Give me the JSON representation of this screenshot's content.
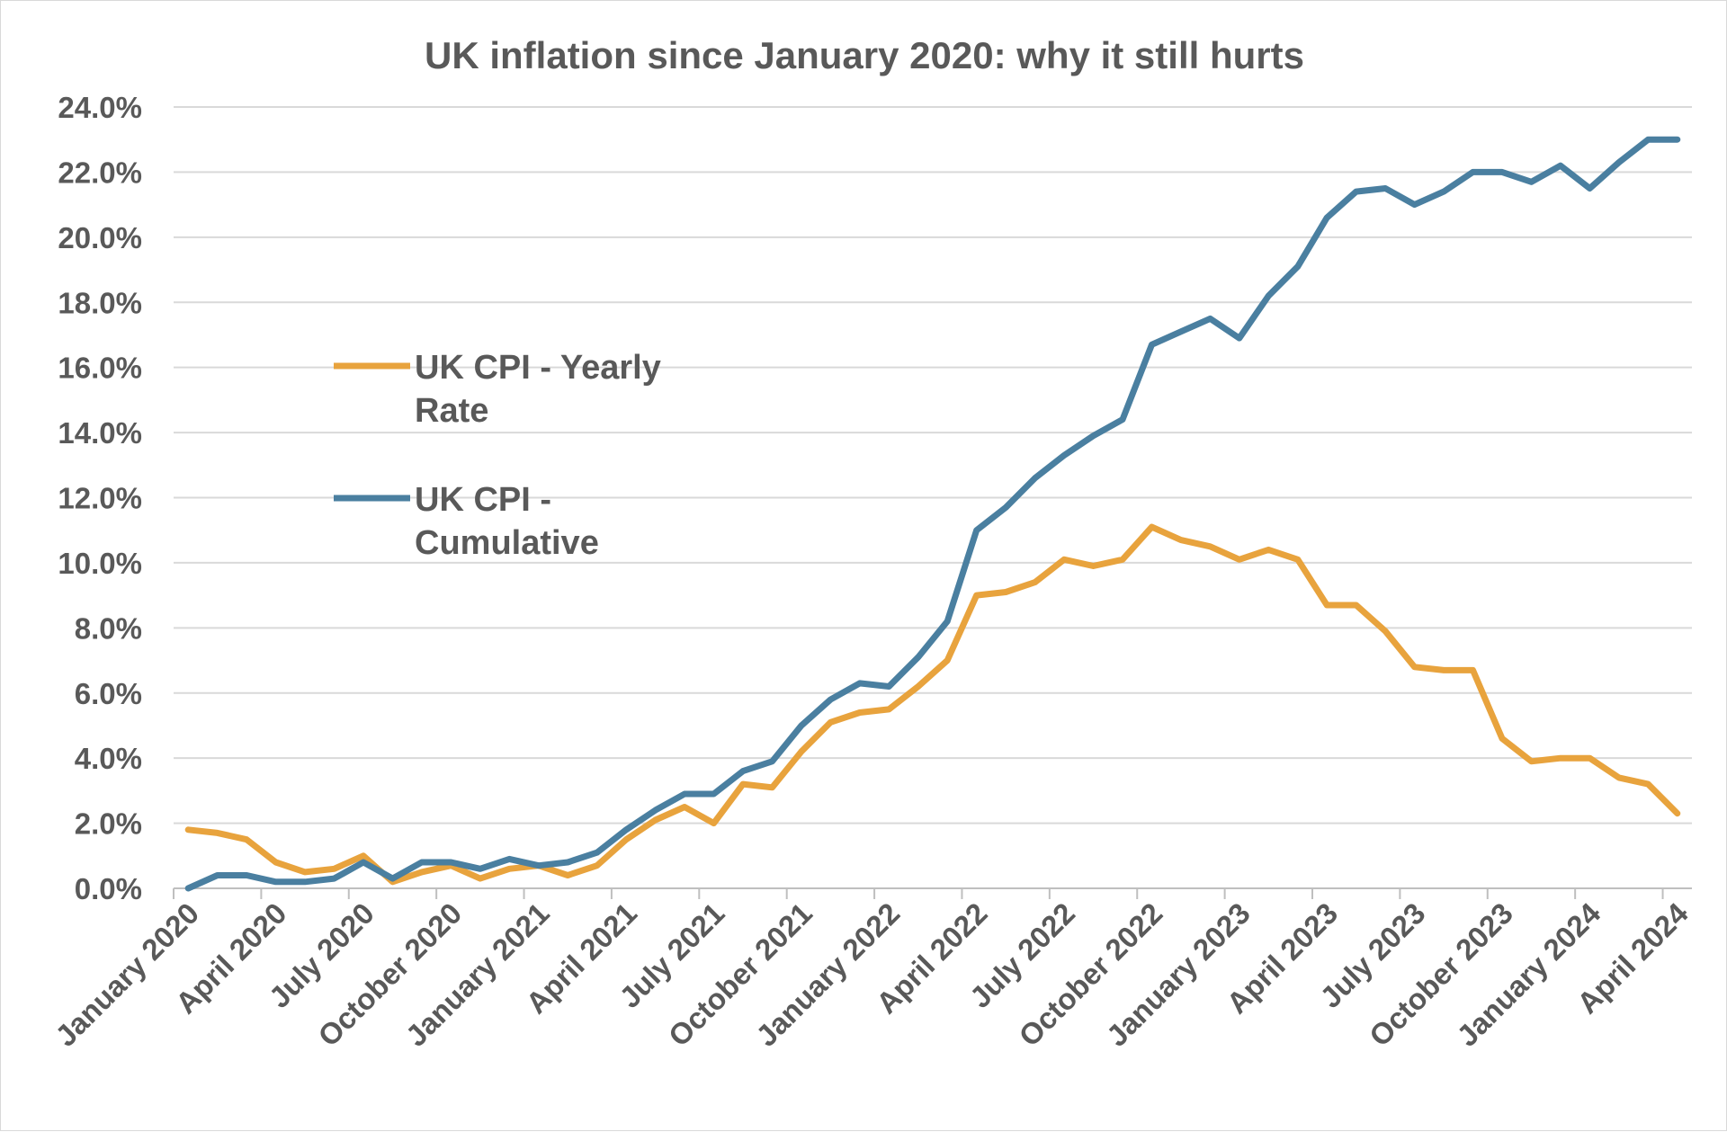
{
  "chart_data": {
    "type": "line",
    "title": "UK inflation since January 2020: why it still hurts",
    "xlabel": "",
    "ylabel": "",
    "ylim": [
      0,
      24
    ],
    "ytick_labels": [
      "0.0%",
      "2.0%",
      "4.0%",
      "6.0%",
      "8.0%",
      "10.0%",
      "12.0%",
      "14.0%",
      "16.0%",
      "18.0%",
      "20.0%",
      "22.0%",
      "24.0%"
    ],
    "y_unit": "%",
    "grid": true,
    "legend_placement": "left-center",
    "x": [
      "January 2020",
      "February 2020",
      "March 2020",
      "April 2020",
      "May 2020",
      "June 2020",
      "July 2020",
      "August 2020",
      "September 2020",
      "October 2020",
      "November 2020",
      "December 2020",
      "January 2021",
      "February 2021",
      "March 2021",
      "April 2021",
      "May 2021",
      "June 2021",
      "July 2021",
      "August 2021",
      "September 2021",
      "October 2021",
      "November 2021",
      "December 2021",
      "January 2022",
      "February 2022",
      "March 2022",
      "April 2022",
      "May 2022",
      "June 2022",
      "July 2022",
      "August 2022",
      "September 2022",
      "October 2022",
      "November 2022",
      "December 2022",
      "January 2023",
      "February 2023",
      "March 2023",
      "April 2023",
      "May 2023",
      "June 2023",
      "July 2023",
      "August 2023",
      "September 2023",
      "October 2023",
      "November 2023",
      "December 2023",
      "January 2024",
      "February 2024",
      "March 2024",
      "April 2024"
    ],
    "x_tick_labels": [
      "January 2020",
      "April 2020",
      "July 2020",
      "October 2020",
      "January 2021",
      "April 2021",
      "July 2021",
      "October 2021",
      "January 2022",
      "April 2022",
      "July 2022",
      "October 2022",
      "January 2023",
      "April 2023",
      "July 2023",
      "October 2023",
      "January 2024",
      "April 2024"
    ],
    "series": [
      {
        "name": "UK CPI - Yearly Rate",
        "color": "#E8A33D",
        "values": [
          1.8,
          1.7,
          1.5,
          0.8,
          0.5,
          0.6,
          1.0,
          0.2,
          0.5,
          0.7,
          0.3,
          0.6,
          0.7,
          0.4,
          0.7,
          1.5,
          2.1,
          2.5,
          2.0,
          3.2,
          3.1,
          4.2,
          5.1,
          5.4,
          5.5,
          6.2,
          7.0,
          9.0,
          9.1,
          9.4,
          10.1,
          9.9,
          10.1,
          11.1,
          10.7,
          10.5,
          10.1,
          10.4,
          10.1,
          8.7,
          8.7,
          7.9,
          6.8,
          6.7,
          6.7,
          4.6,
          3.9,
          4.0,
          4.0,
          3.4,
          3.2,
          2.3
        ]
      },
      {
        "name": "UK CPI - Cumulative",
        "color": "#4A7FA0",
        "values": [
          0.0,
          0.4,
          0.4,
          0.2,
          0.2,
          0.3,
          0.8,
          0.3,
          0.8,
          0.8,
          0.6,
          0.9,
          0.7,
          0.8,
          1.1,
          1.8,
          2.4,
          2.9,
          2.9,
          3.6,
          3.9,
          5.0,
          5.8,
          6.3,
          6.2,
          7.1,
          8.2,
          11.0,
          11.7,
          12.6,
          13.3,
          13.9,
          14.4,
          16.7,
          17.1,
          17.5,
          16.9,
          18.2,
          19.1,
          20.6,
          21.4,
          21.5,
          21.0,
          21.4,
          22.0,
          22.0,
          21.7,
          22.2,
          21.5,
          22.3,
          23.0,
          23.0
        ]
      }
    ]
  }
}
